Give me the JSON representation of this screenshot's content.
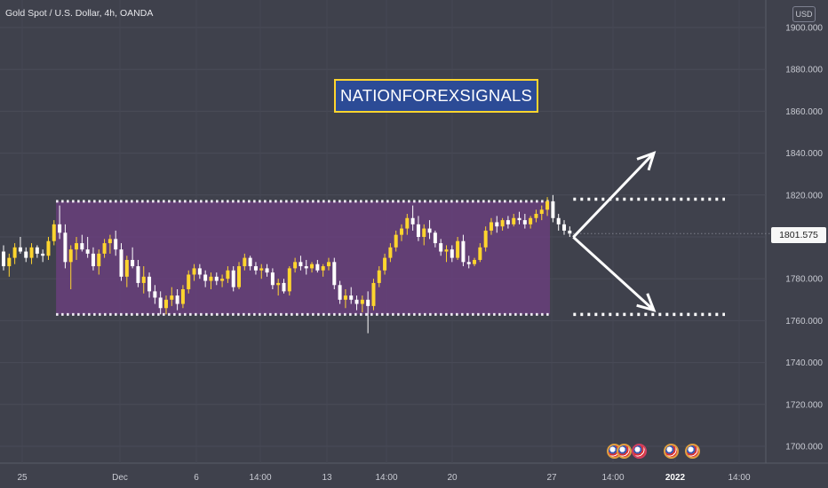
{
  "header": {
    "title": "Gold Spot / U.S. Dollar, 4h, OANDA",
    "currency": "USD",
    "last_price": "1801.575"
  },
  "watermark": {
    "label": "NATIONFOREXSIGNALS"
  },
  "colors": {
    "background": "#3f414c",
    "up_candle": "#ffd52e",
    "down_candle": "#ffffff",
    "range_box": "#6b3f80",
    "badge_bg": "#2c4b96",
    "badge_border": "#ffd52e"
  },
  "chart_data": {
    "type": "candlestick",
    "symbol": "XAUUSD",
    "timeframe": "4h",
    "ylim": [
      1690,
      1915
    ],
    "grid": true,
    "y_ticks": [
      "1900.000",
      "1880.000",
      "1860.000",
      "1840.000",
      "1820.000",
      "1800.000",
      "1780.000",
      "1760.000",
      "1740.000",
      "1720.000",
      "1700.000"
    ],
    "x_ticks": [
      "25",
      "Dec",
      "6",
      "14:00",
      "13",
      "14:00",
      "20",
      "27",
      "14:00",
      "2022",
      "14:00"
    ],
    "candles": [
      [
        1793,
        1796,
        1784,
        1786
      ],
      [
        1786,
        1792,
        1781,
        1790
      ],
      [
        1790,
        1797,
        1787,
        1795
      ],
      [
        1795,
        1800,
        1792,
        1793
      ],
      [
        1793,
        1795,
        1788,
        1790
      ],
      [
        1790,
        1797,
        1787,
        1795
      ],
      [
        1795,
        1796,
        1790,
        1792
      ],
      [
        1792,
        1794,
        1788,
        1791
      ],
      [
        1791,
        1800,
        1789,
        1798
      ],
      [
        1798,
        1808,
        1796,
        1806
      ],
      [
        1806,
        1815,
        1799,
        1802
      ],
      [
        1802,
        1806,
        1785,
        1788
      ],
      [
        1788,
        1796,
        1775,
        1794
      ],
      [
        1794,
        1800,
        1789,
        1797
      ],
      [
        1797,
        1801,
        1793,
        1794
      ],
      [
        1794,
        1800,
        1790,
        1792
      ],
      [
        1792,
        1795,
        1784,
        1786
      ],
      [
        1786,
        1794,
        1782,
        1792
      ],
      [
        1792,
        1799,
        1790,
        1797
      ],
      [
        1797,
        1801,
        1792,
        1799
      ],
      [
        1799,
        1803,
        1791,
        1794
      ],
      [
        1794,
        1797,
        1779,
        1781
      ],
      [
        1781,
        1791,
        1776,
        1789
      ],
      [
        1789,
        1795,
        1785,
        1786
      ],
      [
        1786,
        1789,
        1776,
        1778
      ],
      [
        1778,
        1786,
        1773,
        1781
      ],
      [
        1781,
        1783,
        1771,
        1774
      ],
      [
        1774,
        1777,
        1768,
        1771
      ],
      [
        1771,
        1774,
        1763,
        1766
      ],
      [
        1766,
        1772,
        1763,
        1770
      ],
      [
        1770,
        1776,
        1767,
        1772
      ],
      [
        1772,
        1775,
        1765,
        1768
      ],
      [
        1768,
        1777,
        1766,
        1775
      ],
      [
        1775,
        1784,
        1773,
        1782
      ],
      [
        1782,
        1787,
        1779,
        1785
      ],
      [
        1785,
        1787,
        1780,
        1782
      ],
      [
        1782,
        1784,
        1776,
        1779
      ],
      [
        1779,
        1783,
        1775,
        1781
      ],
      [
        1781,
        1783,
        1777,
        1779
      ],
      [
        1779,
        1782,
        1776,
        1780
      ],
      [
        1780,
        1786,
        1778,
        1784
      ],
      [
        1784,
        1786,
        1774,
        1776
      ],
      [
        1776,
        1788,
        1775,
        1786
      ],
      [
        1786,
        1792,
        1784,
        1790
      ],
      [
        1790,
        1791,
        1784,
        1786
      ],
      [
        1786,
        1788,
        1782,
        1784
      ],
      [
        1784,
        1787,
        1780,
        1785
      ],
      [
        1785,
        1787,
        1781,
        1783
      ],
      [
        1783,
        1785,
        1775,
        1777
      ],
      [
        1777,
        1780,
        1772,
        1778
      ],
      [
        1778,
        1780,
        1773,
        1774
      ],
      [
        1774,
        1786,
        1772,
        1785
      ],
      [
        1785,
        1790,
        1783,
        1788
      ],
      [
        1788,
        1791,
        1784,
        1786
      ],
      [
        1786,
        1789,
        1782,
        1785
      ],
      [
        1785,
        1788,
        1783,
        1787
      ],
      [
        1787,
        1789,
        1783,
        1784
      ],
      [
        1784,
        1787,
        1781,
        1786
      ],
      [
        1786,
        1790,
        1784,
        1788
      ],
      [
        1788,
        1790,
        1775,
        1777
      ],
      [
        1777,
        1779,
        1768,
        1770
      ],
      [
        1770,
        1775,
        1766,
        1772
      ],
      [
        1772,
        1776,
        1768,
        1770
      ],
      [
        1770,
        1772,
        1765,
        1768
      ],
      [
        1768,
        1772,
        1764,
        1770
      ],
      [
        1770,
        1774,
        1754,
        1767
      ],
      [
        1767,
        1780,
        1765,
        1778
      ],
      [
        1778,
        1786,
        1776,
        1784
      ],
      [
        1784,
        1792,
        1782,
        1790
      ],
      [
        1790,
        1797,
        1788,
        1795
      ],
      [
        1795,
        1803,
        1793,
        1801
      ],
      [
        1801,
        1806,
        1798,
        1804
      ],
      [
        1804,
        1811,
        1801,
        1809
      ],
      [
        1809,
        1815,
        1803,
        1806
      ],
      [
        1806,
        1810,
        1798,
        1800
      ],
      [
        1800,
        1806,
        1796,
        1804
      ],
      [
        1804,
        1808,
        1799,
        1802
      ],
      [
        1802,
        1803,
        1795,
        1797
      ],
      [
        1797,
        1799,
        1791,
        1793
      ],
      [
        1793,
        1796,
        1788,
        1794
      ],
      [
        1794,
        1796,
        1788,
        1790
      ],
      [
        1790,
        1800,
        1789,
        1798
      ],
      [
        1798,
        1801,
        1786,
        1788
      ],
      [
        1788,
        1791,
        1785,
        1787
      ],
      [
        1787,
        1790,
        1786,
        1789
      ],
      [
        1789,
        1797,
        1788,
        1795
      ],
      [
        1795,
        1805,
        1793,
        1803
      ],
      [
        1803,
        1809,
        1801,
        1807
      ],
      [
        1807,
        1810,
        1802,
        1805
      ],
      [
        1805,
        1809,
        1803,
        1808
      ],
      [
        1808,
        1810,
        1804,
        1806
      ],
      [
        1806,
        1811,
        1805,
        1809
      ],
      [
        1809,
        1812,
        1806,
        1808
      ],
      [
        1808,
        1811,
        1804,
        1806
      ],
      [
        1806,
        1810,
        1804,
        1809
      ],
      [
        1809,
        1813,
        1807,
        1811
      ],
      [
        1811,
        1815,
        1808,
        1813
      ],
      [
        1813,
        1819,
        1810,
        1817
      ],
      [
        1817,
        1820,
        1807,
        1809
      ],
      [
        1809,
        1811,
        1803,
        1806
      ],
      [
        1806,
        1808,
        1801,
        1803
      ],
      [
        1803,
        1805,
        1800,
        1801.575
      ]
    ],
    "annotations": [
      {
        "type": "range_box",
        "from_index": 10,
        "to_index": 97,
        "top": 1817,
        "bottom": 1763
      },
      {
        "type": "dotted_level",
        "price": 1818
      },
      {
        "type": "dotted_level",
        "price": 1763
      },
      {
        "type": "arrow",
        "direction": "up",
        "target": 1840
      },
      {
        "type": "arrow",
        "direction": "down",
        "target": 1765
      }
    ]
  }
}
